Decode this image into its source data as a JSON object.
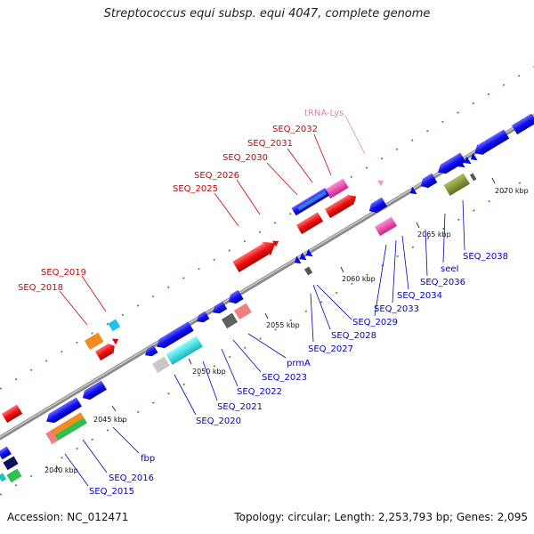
{
  "title": "Streptococcus equi subsp. equi 4047, complete genome",
  "accession": "Accession: NC_012471",
  "topology": "Topology: circular; Length: 2,253,793 bp; Genes: 2,095",
  "ticks": [
    "2040 kbp",
    "2045 kbp",
    "2050 kbp",
    "2055 kbp",
    "2060 kbp",
    "2065 kbp",
    "2070 kbp"
  ],
  "labels": {
    "trna": "tRNA-Lys",
    "seq_2032": "SEQ_2032",
    "seq_2031": "SEQ_2031",
    "seq_2030": "SEQ_2030",
    "seq_2026": "SEQ_2026",
    "seq_2025": "SEQ_2025",
    "seq_2019": "SEQ_2019",
    "seq_2018": "SEQ_2018",
    "seq_2038": "SEQ_2038",
    "seel": "seeI",
    "seq_2036": "SEQ_2036",
    "seq_2034": "SEQ_2034",
    "seq_2033": "SEQ_2033",
    "seq_2029": "SEQ_2029",
    "seq_2028": "SEQ_2028",
    "seq_2027": "SEQ_2027",
    "prma": "prmA",
    "seq_2023": "SEQ_2023",
    "seq_2022": "SEQ_2022",
    "seq_2021": "SEQ_2021",
    "seq_2020": "SEQ_2020",
    "fbp": "fbp",
    "seq_2016": "SEQ_2016",
    "seq_2015": "SEQ_2015"
  },
  "colors": {
    "forward_label": "#d40000",
    "reverse_label": "#0000cc",
    "trna_label": "#e080b0",
    "backbone": "#999999",
    "gene_blue": "#0000ee",
    "gene_red": "#ee0000"
  }
}
